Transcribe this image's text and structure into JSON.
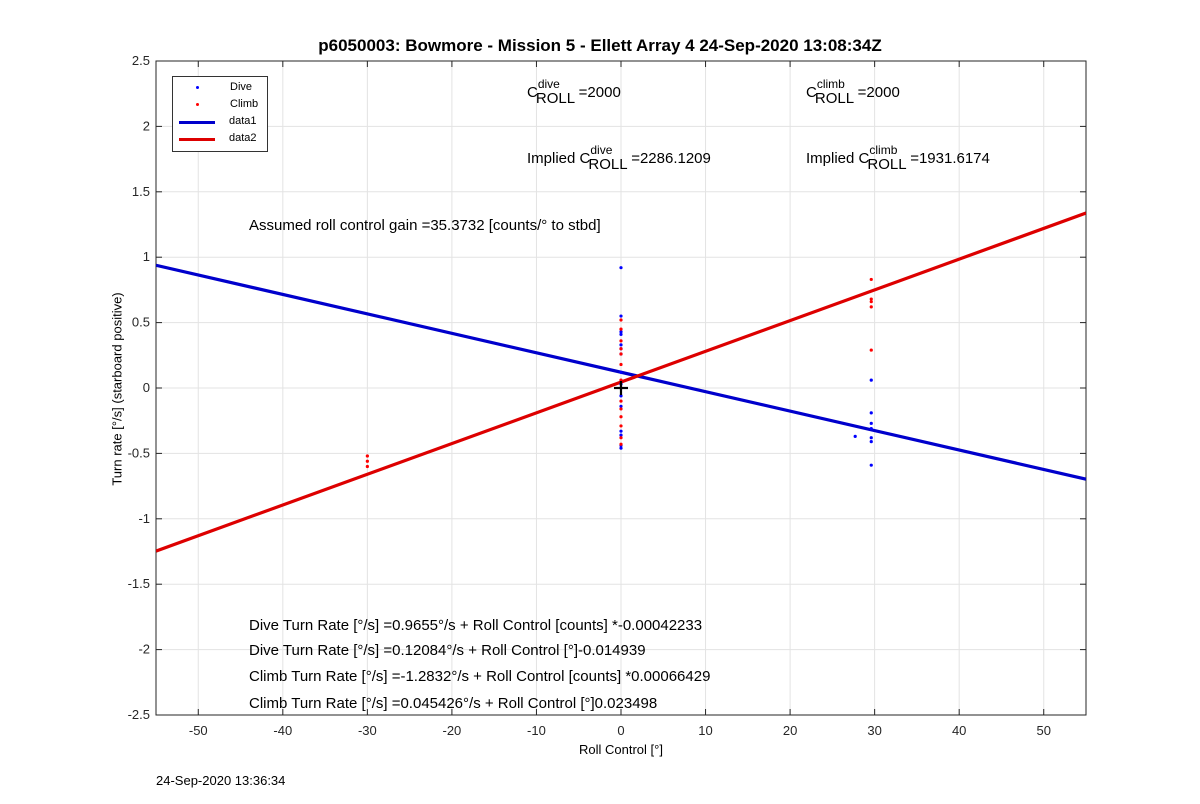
{
  "chart_data": {
    "type": "scatter",
    "title": "p6050003: Bowmore - Mission 5 - Ellett Array 4 24-Sep-2020 13:08:34Z",
    "xlabel": "Roll Control [°]",
    "ylabel": "Turn rate [°/s] (starboard positive)",
    "xlim": [
      -55,
      55
    ],
    "ylim": [
      -2.5,
      2.5
    ],
    "xticks": [
      -50,
      -40,
      -30,
      -20,
      -10,
      0,
      10,
      20,
      30,
      40,
      50
    ],
    "yticks": [
      -2.5,
      -2,
      -1.5,
      -1,
      -0.5,
      0,
      0.5,
      1,
      1.5,
      2,
      2.5
    ],
    "grid": true,
    "legend_position": "top-left",
    "series": [
      {
        "name": "Dive",
        "kind": "points",
        "color": "#0000ff",
        "x": [
          0,
          0,
          0,
          0,
          0,
          0,
          0,
          0,
          0,
          0,
          0,
          0,
          0,
          0,
          0,
          27.7,
          29.6,
          29.6,
          29.6,
          29.6,
          29.6,
          29.6,
          29.6
        ],
        "y": [
          0.92,
          0.55,
          0.43,
          0.41,
          0.33,
          0.3,
          0.26,
          0.12,
          0.03,
          -0.06,
          -0.14,
          -0.33,
          -0.36,
          -0.44,
          -0.46,
          -0.37,
          0.06,
          -0.19,
          -0.27,
          -0.31,
          -0.38,
          -0.41,
          -0.59
        ]
      },
      {
        "name": "Climb",
        "kind": "points",
        "color": "#ff0000",
        "x": [
          -30,
          -30,
          -30,
          0,
          0,
          0,
          0,
          0,
          0,
          0,
          0,
          0,
          0,
          0,
          0,
          0,
          0,
          29.6,
          29.6,
          29.6,
          29.6,
          29.6
        ],
        "y": [
          -0.52,
          -0.56,
          -0.6,
          0.52,
          0.45,
          0.36,
          0.3,
          0.26,
          0.18,
          0.06,
          0.0,
          -0.1,
          -0.16,
          -0.22,
          -0.29,
          -0.38,
          -0.43,
          0.83,
          0.68,
          0.66,
          0.62,
          0.29
        ]
      },
      {
        "name": "data1",
        "kind": "line",
        "color": "#0000cc",
        "x": [
          -55,
          55
        ],
        "y": [
          0.9382,
          -0.6971
        ]
      },
      {
        "name": "data2",
        "kind": "line",
        "color": "#dd0000",
        "x": [
          -55,
          55
        ],
        "y": [
          -1.2469,
          1.3376
        ]
      }
    ],
    "origin_marker": {
      "x": 0,
      "y": 0
    }
  },
  "annotations": {
    "c_dive_pre": "C",
    "c_dive_sup": "dive",
    "c_dive_sub": "ROLL",
    "c_dive_val": "=2000",
    "c_climb_pre": "C",
    "c_climb_sup": "climb",
    "c_climb_sub": "ROLL",
    "c_climb_val": "=2000",
    "impl_dive_pre": "Implied C",
    "impl_dive_sup": "dive",
    "impl_dive_sub": "ROLL",
    "impl_dive_val": "=2286.1209",
    "impl_climb_pre": "Implied C",
    "impl_climb_sup": "climb",
    "impl_climb_sub": "ROLL",
    "impl_climb_val": "=1931.6174",
    "gain": "Assumed roll control gain =35.3732 [counts/° to stbd]",
    "eq1": "Dive Turn Rate [°/s] =0.9655°/s + Roll Control [counts] *-0.00042233",
    "eq2": "Dive Turn Rate [°/s] =0.12084°/s + Roll Control [°]-0.014939",
    "eq3": "Climb Turn Rate [°/s] =-1.2832°/s + Roll Control [counts] *0.00066429",
    "eq4": "Climb Turn Rate [°/s] =0.045426°/s + Roll Control [°]0.023498"
  },
  "legend": [
    {
      "label": "Dive",
      "kind": "dot",
      "color": "#0000ff"
    },
    {
      "label": "Climb",
      "kind": "dot",
      "color": "#ff0000"
    },
    {
      "label": "data1",
      "kind": "line",
      "color": "#0000cc"
    },
    {
      "label": "data2",
      "kind": "line",
      "color": "#dd0000"
    }
  ],
  "footer": "24-Sep-2020 13:36:34"
}
